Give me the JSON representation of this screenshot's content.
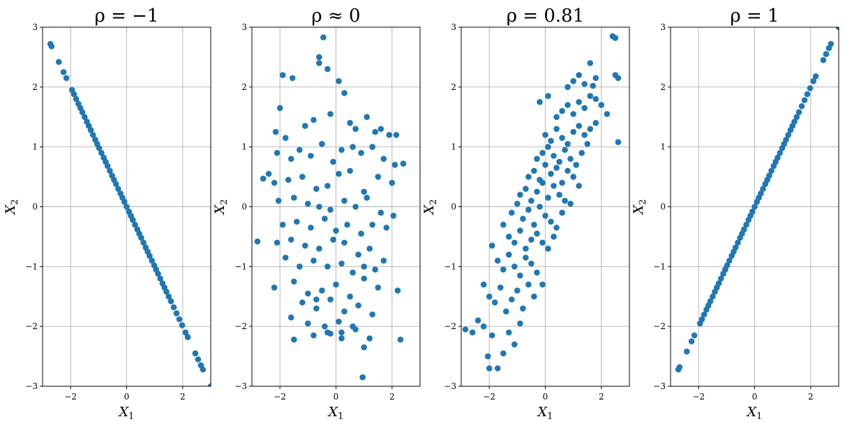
{
  "chart_data": [
    {
      "type": "scatter",
      "title": "ρ = −1",
      "xlabel": "X1",
      "ylabel": "X2",
      "xlim": [
        -3,
        3
      ],
      "ylim": [
        -3,
        3
      ],
      "xticks": [
        -2,
        0,
        2
      ],
      "yticks": [
        -3,
        -2,
        -1,
        0,
        1,
        2,
        3
      ],
      "xtick_labels": [
        "−2",
        "0",
        "2"
      ],
      "ytick_labels": [
        "−3",
        "−2",
        "−1",
        "0",
        "1",
        "2",
        "3"
      ],
      "grid": true,
      "marker_color": "#1f77b4",
      "x": [
        -2.72,
        -2.68,
        -2.42,
        -2.25,
        -2.15,
        -1.95,
        -1.88,
        -1.8,
        -1.72,
        -1.65,
        -1.58,
        -1.5,
        -1.42,
        -1.35,
        -1.28,
        -1.2,
        -1.12,
        -1.05,
        -0.98,
        -0.9,
        -0.82,
        -0.75,
        -0.68,
        -0.6,
        -0.52,
        -0.45,
        -0.38,
        -0.3,
        -0.22,
        -0.15,
        -0.08,
        0.0,
        0.08,
        0.15,
        0.22,
        0.3,
        0.38,
        0.45,
        0.52,
        0.6,
        0.68,
        0.75,
        0.82,
        0.9,
        0.98,
        1.05,
        1.12,
        1.2,
        1.28,
        1.35,
        1.42,
        1.5,
        1.58,
        1.68,
        1.78,
        1.88,
        1.98,
        2.1,
        2.18,
        2.45,
        2.55,
        2.65,
        2.72,
        3.0
      ],
      "y": [
        2.72,
        2.68,
        2.42,
        2.25,
        2.15,
        1.95,
        1.88,
        1.8,
        1.72,
        1.65,
        1.58,
        1.5,
        1.42,
        1.35,
        1.28,
        1.2,
        1.12,
        1.05,
        0.98,
        0.9,
        0.82,
        0.75,
        0.68,
        0.6,
        0.52,
        0.45,
        0.38,
        0.3,
        0.22,
        0.15,
        0.08,
        0.0,
        -0.08,
        -0.15,
        -0.22,
        -0.3,
        -0.38,
        -0.45,
        -0.52,
        -0.6,
        -0.68,
        -0.75,
        -0.82,
        -0.9,
        -0.98,
        -1.05,
        -1.12,
        -1.2,
        -1.28,
        -1.35,
        -1.42,
        -1.5,
        -1.58,
        -1.68,
        -1.78,
        -1.88,
        -1.98,
        -2.1,
        -2.18,
        -2.45,
        -2.55,
        -2.65,
        -2.72,
        -3.0
      ]
    },
    {
      "type": "scatter",
      "title": "ρ ≈ 0",
      "xlabel": "X1",
      "ylabel": "X2",
      "xlim": [
        -3,
        3
      ],
      "ylim": [
        -3,
        3
      ],
      "xticks": [
        -2,
        0,
        2
      ],
      "yticks": [
        -3,
        -2,
        -1,
        0,
        1,
        2,
        3
      ],
      "xtick_labels": [
        "−2",
        "0",
        "2"
      ],
      "ytick_labels": [
        "−3",
        "−2",
        "−1",
        "0",
        "1",
        "2",
        "3"
      ],
      "grid": true,
      "marker_color": "#1f77b4",
      "x": [
        -0.45,
        -0.6,
        -0.6,
        -0.3,
        -1.9,
        -1.55,
        -2.0,
        -2.15,
        -1.8,
        -1.1,
        -0.8,
        -0.2,
        0.1,
        0.3,
        0.5,
        0.7,
        1.1,
        1.4,
        1.6,
        1.9,
        2.15,
        -2.4,
        -2.1,
        -1.6,
        -1.3,
        -0.9,
        -0.5,
        -0.1,
        0.2,
        0.6,
        0.9,
        1.3,
        1.7,
        2.1,
        2.4,
        -2.2,
        -1.7,
        -1.2,
        -0.7,
        -0.3,
        0.1,
        0.5,
        1.0,
        1.5,
        2.0,
        -2.05,
        -1.5,
        -1.0,
        -0.6,
        -0.2,
        0.3,
        0.7,
        1.1,
        1.6,
        2.05,
        -1.9,
        -1.4,
        -0.9,
        -0.4,
        0.0,
        0.4,
        0.9,
        1.3,
        1.8,
        -2.1,
        -1.6,
        -1.1,
        -0.6,
        -0.1,
        0.3,
        0.8,
        1.2,
        1.7,
        -1.8,
        -1.3,
        -0.8,
        -0.3,
        0.2,
        0.6,
        1.0,
        1.4,
        -2.2,
        -1.5,
        -1.0,
        -0.5,
        0.0,
        0.5,
        1.0,
        1.5,
        2.2,
        -1.2,
        -0.7,
        -0.2,
        0.3,
        0.8,
        1.3,
        -1.6,
        -1.0,
        -0.4,
        0.2,
        0.7,
        1.2,
        -0.8,
        -0.3,
        0.2,
        0.6,
        1.0,
        -0.2,
        0.95,
        -2.8,
        -2.6,
        -1.5,
        2.3,
        -0.7,
        0.1
      ],
      "y": [
        2.83,
        2.4,
        2.5,
        2.3,
        2.2,
        2.15,
        1.65,
        1.25,
        1.15,
        1.35,
        1.45,
        1.55,
        2.1,
        1.9,
        1.4,
        1.3,
        1.5,
        1.25,
        1.3,
        1.2,
        1.2,
        0.55,
        0.9,
        0.8,
        0.95,
        0.85,
        1.05,
        0.75,
        0.95,
        1.0,
        0.9,
        1.0,
        0.8,
        0.7,
        0.72,
        0.4,
        0.45,
        0.5,
        0.3,
        0.35,
        0.55,
        0.6,
        0.25,
        0.5,
        0.4,
        0.1,
        0.15,
        0.05,
        0.0,
        -0.05,
        0.1,
        0.0,
        0.15,
        -0.1,
        -0.15,
        -0.3,
        -0.25,
        -0.35,
        -0.2,
        -0.4,
        -0.3,
        -0.45,
        -0.3,
        -0.35,
        -0.6,
        -0.55,
        -0.65,
        -0.7,
        -0.55,
        -0.6,
        -0.8,
        -0.7,
        -0.9,
        -0.85,
        -1.0,
        -0.9,
        -1.0,
        -0.95,
        -1.1,
        -1.0,
        -1.05,
        -1.35,
        -1.25,
        -1.45,
        -1.4,
        -1.3,
        -1.5,
        -1.2,
        -1.35,
        -1.4,
        -1.6,
        -1.7,
        -1.55,
        -1.75,
        -1.65,
        -1.8,
        -1.85,
        -1.95,
        -2.0,
        -2.1,
        -2.05,
        -2.2,
        -2.15,
        -2.1,
        -2.2,
        -2.0,
        -2.35,
        -2.12,
        -2.85,
        -0.58,
        0.47,
        -2.22,
        -2.22,
        -1.55,
        -1.92
      ],
      "y_note": ""
    },
    {
      "type": "scatter",
      "title": "ρ = 0.81",
      "xlabel": "X1",
      "ylabel": "X2",
      "xlim": [
        -3,
        3
      ],
      "ylim": [
        -3,
        3
      ],
      "xticks": [
        -2,
        0,
        2
      ],
      "yticks": [
        -3,
        -2,
        -1,
        0,
        1,
        2,
        3
      ],
      "xtick_labels": [
        "−2",
        "0",
        "2"
      ],
      "ytick_labels": [
        "−3",
        "−2",
        "−1",
        "0",
        "1",
        "2",
        "3"
      ],
      "grid": true,
      "marker_color": "#1f77b4",
      "x": [
        -2.85,
        -2.6,
        -2.4,
        -2.2,
        -2.0,
        -2.05,
        -1.9,
        -1.7,
        -1.5,
        -1.3,
        -1.1,
        -0.9,
        -2.2,
        -2.0,
        -1.8,
        -1.6,
        -1.4,
        -1.2,
        -1.0,
        -0.8,
        -0.6,
        -0.4,
        -1.9,
        -1.7,
        -1.5,
        -1.3,
        -1.1,
        -0.9,
        -0.7,
        -0.5,
        -0.3,
        -0.1,
        -1.5,
        -1.3,
        -1.1,
        -0.9,
        -0.7,
        -0.5,
        -0.3,
        -0.1,
        0.1,
        0.3,
        -1.2,
        -1.0,
        -0.8,
        -0.6,
        -0.4,
        -0.2,
        0.0,
        0.2,
        0.4,
        0.6,
        -0.9,
        -0.7,
        -0.5,
        -0.3,
        -0.1,
        0.1,
        0.3,
        0.5,
        0.7,
        0.9,
        -0.6,
        -0.4,
        -0.2,
        0.0,
        0.2,
        0.4,
        0.6,
        0.8,
        1.0,
        1.2,
        -0.3,
        -0.1,
        0.1,
        0.3,
        0.5,
        0.7,
        0.9,
        1.1,
        1.3,
        1.5,
        0.0,
        0.2,
        0.4,
        0.6,
        0.8,
        1.0,
        1.2,
        1.4,
        1.6,
        1.8,
        0.4,
        0.6,
        0.8,
        1.0,
        1.2,
        1.4,
        1.6,
        1.8,
        2.0,
        2.2,
        0.8,
        1.0,
        1.2,
        1.4,
        1.6,
        1.8,
        2.4,
        2.5,
        2.6,
        2.5,
        2.6,
        -0.2,
        0.1,
        1.7
      ],
      "y": [
        -2.05,
        -2.1,
        -1.9,
        -2.0,
        -2.7,
        -2.5,
        -2.15,
        -2.7,
        -2.45,
        -2.1,
        -2.3,
        -1.95,
        -1.3,
        -1.5,
        -1.6,
        -1.35,
        -1.75,
        -1.55,
        -1.4,
        -1.7,
        -1.3,
        -1.5,
        -0.65,
        -0.9,
        -1.05,
        -0.8,
        -1.0,
        -1.15,
        -0.85,
        -0.95,
        -1.1,
        -1.3,
        -0.3,
        -0.5,
        -0.6,
        -0.4,
        -0.7,
        -0.55,
        -0.45,
        -0.6,
        -0.7,
        -0.5,
        -0.1,
        0.05,
        -0.2,
        -0.05,
        -0.3,
        0.0,
        -0.15,
        -0.25,
        -0.35,
        -0.1,
        0.2,
        0.3,
        0.1,
        0.25,
        0.4,
        0.15,
        0.35,
        0.2,
        0.1,
        0.05,
        0.5,
        0.6,
        0.45,
        0.7,
        0.55,
        0.65,
        0.4,
        0.6,
        0.5,
        0.35,
        0.8,
        0.9,
        1.0,
        0.85,
        0.75,
        0.95,
        0.8,
        0.7,
        0.9,
        1.05,
        1.2,
        1.1,
        1.3,
        1.15,
        1.05,
        1.25,
        1.35,
        1.2,
        1.3,
        1.4,
        1.5,
        1.6,
        1.7,
        1.55,
        1.75,
        1.65,
        1.85,
        1.8,
        1.7,
        1.55,
        2.0,
        2.1,
        2.2,
        2.05,
        2.4,
        2.15,
        2.85,
        2.82,
        2.15,
        2.2,
        1.08,
        1.75,
        1.85,
        2.02
      ]
    },
    {
      "type": "scatter",
      "title": "ρ = 1",
      "xlabel": "X1",
      "ylabel": "X2",
      "xlim": [
        -3,
        3
      ],
      "ylim": [
        -3,
        3
      ],
      "xticks": [
        -2,
        0,
        2
      ],
      "yticks": [
        -3,
        -2,
        -1,
        0,
        1,
        2,
        3
      ],
      "xtick_labels": [
        "−2",
        "0",
        "2"
      ],
      "ytick_labels": [
        "−3",
        "−2",
        "−1",
        "0",
        "1",
        "2",
        "3"
      ],
      "grid": true,
      "marker_color": "#1f77b4",
      "x": [
        -2.72,
        -2.68,
        -2.42,
        -2.25,
        -2.15,
        -1.95,
        -1.88,
        -1.8,
        -1.72,
        -1.65,
        -1.58,
        -1.5,
        -1.42,
        -1.35,
        -1.28,
        -1.2,
        -1.12,
        -1.05,
        -0.98,
        -0.9,
        -0.82,
        -0.75,
        -0.68,
        -0.6,
        -0.52,
        -0.45,
        -0.38,
        -0.3,
        -0.22,
        -0.15,
        -0.08,
        0.0,
        0.08,
        0.15,
        0.22,
        0.3,
        0.38,
        0.45,
        0.52,
        0.6,
        0.68,
        0.75,
        0.82,
        0.9,
        0.98,
        1.05,
        1.12,
        1.2,
        1.28,
        1.35,
        1.42,
        1.5,
        1.58,
        1.68,
        1.78,
        1.88,
        1.98,
        2.1,
        2.18,
        2.45,
        2.55,
        2.65,
        2.72,
        3.0
      ],
      "y": [
        -2.72,
        -2.68,
        -2.42,
        -2.25,
        -2.15,
        -1.95,
        -1.88,
        -1.8,
        -1.72,
        -1.65,
        -1.58,
        -1.5,
        -1.42,
        -1.35,
        -1.28,
        -1.2,
        -1.12,
        -1.05,
        -0.98,
        -0.9,
        -0.82,
        -0.75,
        -0.68,
        -0.6,
        -0.52,
        -0.45,
        -0.38,
        -0.3,
        -0.22,
        -0.15,
        -0.08,
        0.0,
        0.08,
        0.15,
        0.22,
        0.3,
        0.38,
        0.45,
        0.52,
        0.6,
        0.68,
        0.75,
        0.82,
        0.9,
        0.98,
        1.05,
        1.12,
        1.2,
        1.28,
        1.35,
        1.42,
        1.5,
        1.58,
        1.68,
        1.78,
        1.88,
        1.98,
        2.1,
        2.18,
        2.45,
        2.55,
        2.65,
        2.72,
        3.0
      ]
    }
  ]
}
